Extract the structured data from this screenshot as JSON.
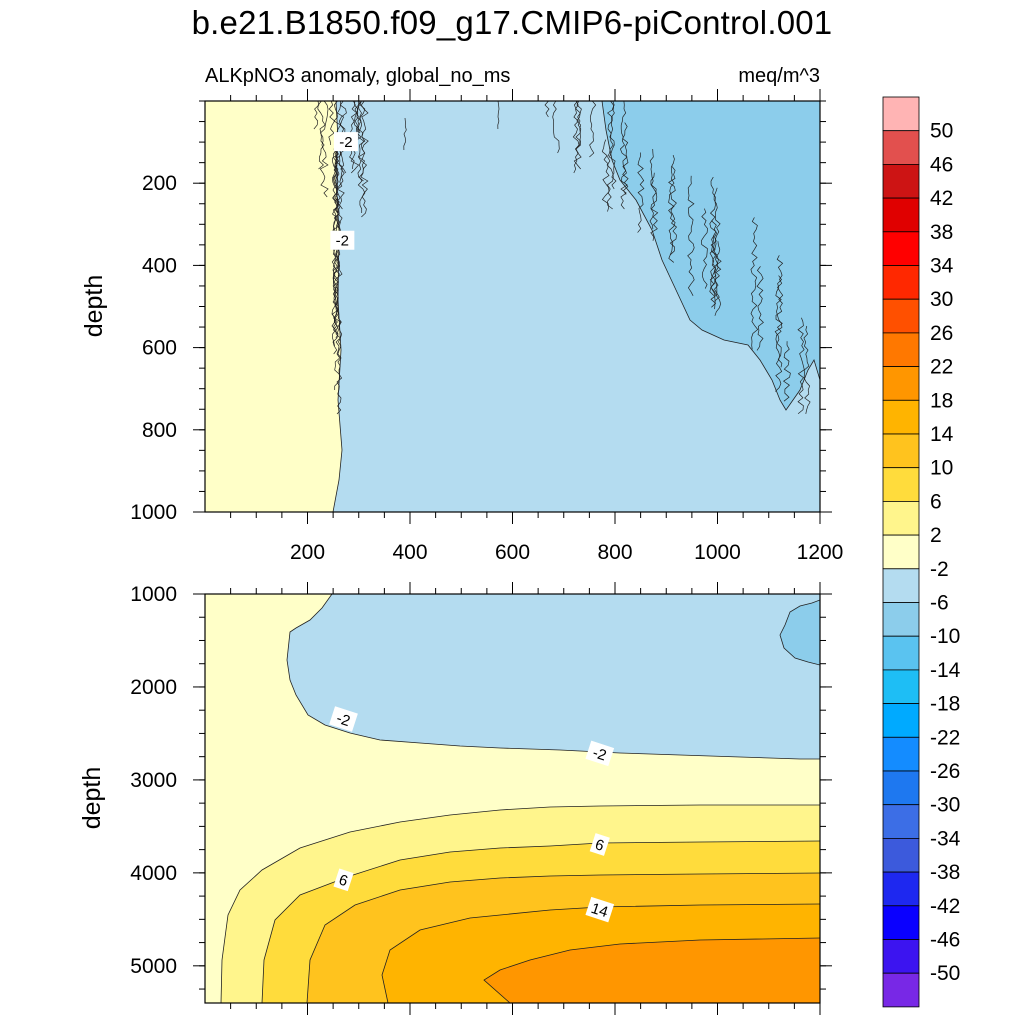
{
  "title": "b.e21.B1850.f09_g17.CMIP6-piControl.001",
  "chart_data": {
    "type": "contour",
    "variable_label": "ALKpNO3 anomaly, global_no_ms",
    "units": "meq/m^3",
    "xlabel": "",
    "x_ticks": [
      200,
      400,
      600,
      800,
      1000,
      1200
    ],
    "x_range": [
      0,
      1200
    ],
    "panels": [
      {
        "name": "upper",
        "ylabel": "depth",
        "ylim": [
          1000,
          0
        ],
        "y_ticks": [
          200,
          400,
          600,
          800,
          1000
        ],
        "regions": [
          {
            "level": "-2 to 2",
            "description": "near-zero band for x < ~265"
          },
          {
            "level": "-6 to -2",
            "description": "most of domain x > ~265"
          },
          {
            "level": "-10 to -6",
            "description": "upper right, deepening from ~0 m at x=650 to ~800 m at x=1200"
          }
        ],
        "contour_labels": [
          {
            "text": "-2",
            "x": 275,
            "depth": 100
          },
          {
            "text": "-2",
            "x": 268,
            "depth": 340
          }
        ]
      },
      {
        "name": "lower",
        "ylabel": "depth",
        "ylim": [
          5400,
          1000
        ],
        "y_ticks": [
          1000,
          2000,
          3000,
          4000,
          5000
        ],
        "regions": [
          {
            "level": "-6 to -2",
            "description": "x 160-1200, depth 1000-2750"
          },
          {
            "level": "-10 to -6",
            "description": "small patch near x=1180, depth 1100-1750"
          },
          {
            "level": "-2 to 2",
            "description": "surrounding water, to ~3250 m"
          },
          {
            "level": "2 to 6",
            "description": "3250-3650 m"
          },
          {
            "level": "6 to 10",
            "description": "3650-4000 m"
          },
          {
            "level": "10 to 14",
            "description": "4000-4300 m"
          },
          {
            "level": "14 to 18",
            "description": "4300-4650 m"
          },
          {
            "level": "18 to 22",
            "description": "below ~4650 m, x > 550"
          }
        ],
        "contour_labels": [
          {
            "text": "-2",
            "x": 270,
            "depth": 2350
          },
          {
            "text": "-2",
            "x": 770,
            "depth": 2720
          },
          {
            "text": "6",
            "x": 270,
            "depth": 4080
          },
          {
            "text": "6",
            "x": 770,
            "depth": 3700
          },
          {
            "text": "14",
            "x": 770,
            "depth": 4400
          }
        ]
      }
    ],
    "colorbar": {
      "labels": [
        "50",
        "46",
        "42",
        "38",
        "34",
        "30",
        "26",
        "22",
        "18",
        "14",
        "10",
        "6",
        "2",
        "-2",
        "-6",
        "-10",
        "-14",
        "-18",
        "-22",
        "-26",
        "-30",
        "-34",
        "-38",
        "-42",
        "-46",
        "-50"
      ],
      "colors": [
        "#ffb4b4",
        "#e2504e",
        "#cd1414",
        "#e00000",
        "#ff0000",
        "#ff2800",
        "#ff5000",
        "#ff7800",
        "#ff9600",
        "#ffb400",
        "#ffc31e",
        "#ffdc3c",
        "#fff58c",
        "#ffffc8",
        "#b4dcf0",
        "#8ccdeb",
        "#5ac3f0",
        "#1ebef5",
        "#00aaff",
        "#148cff",
        "#1e78f0",
        "#3c6ee6",
        "#3c5adc",
        "#1e28f0",
        "#0a00ff",
        "#3c14f0",
        "#7828e6"
      ]
    }
  }
}
